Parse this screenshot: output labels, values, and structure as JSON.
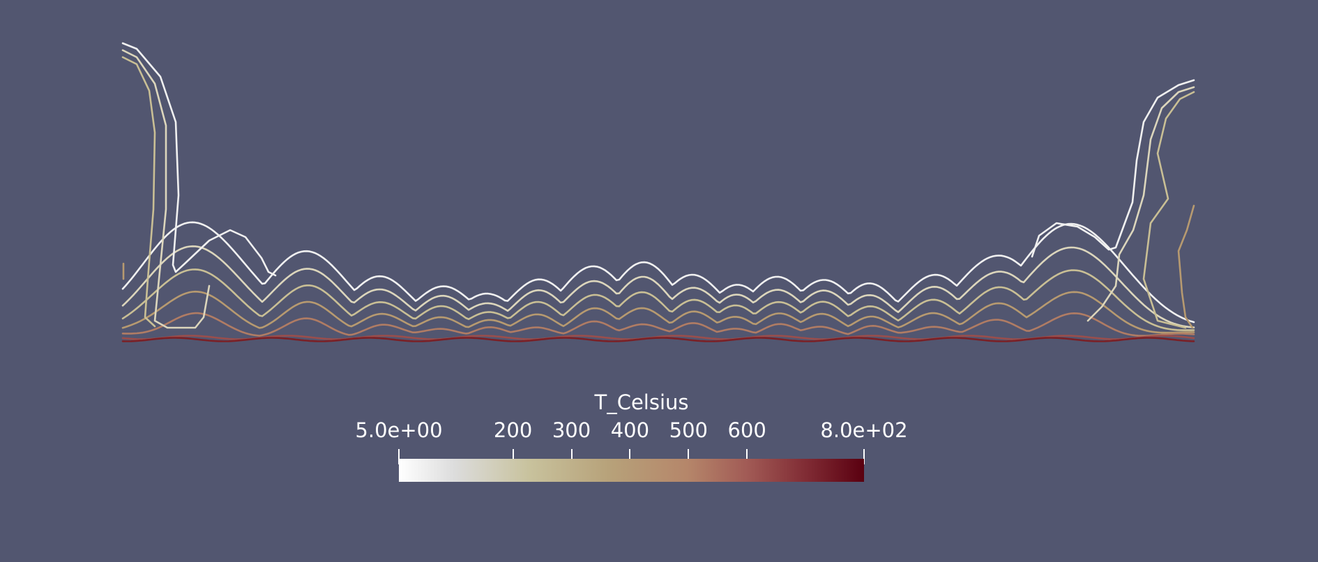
{
  "colorbar": {
    "title": "T_Celsius",
    "ticks": [
      {
        "label": "5.0e+00",
        "value": 5
      },
      {
        "label": "200",
        "value": 200
      },
      {
        "label": "300",
        "value": 300
      },
      {
        "label": "400",
        "value": 400
      },
      {
        "label": "500",
        "value": 500
      },
      {
        "label": "600",
        "value": 600
      },
      {
        "label": "8.0e+02",
        "value": 800
      }
    ],
    "range": [
      5,
      800
    ]
  },
  "contours": {
    "levels": [
      {
        "value": 100,
        "color": "#f0f0f0"
      },
      {
        "value": 200,
        "color": "#dcd6bc"
      },
      {
        "value": 300,
        "color": "#c9bf95"
      },
      {
        "value": 400,
        "color": "#b79a70"
      },
      {
        "value": 500,
        "color": "#b07c64"
      },
      {
        "value": 600,
        "color": "#9a4e4c"
      },
      {
        "value": 700,
        "color": "#7a2026"
      }
    ]
  }
}
